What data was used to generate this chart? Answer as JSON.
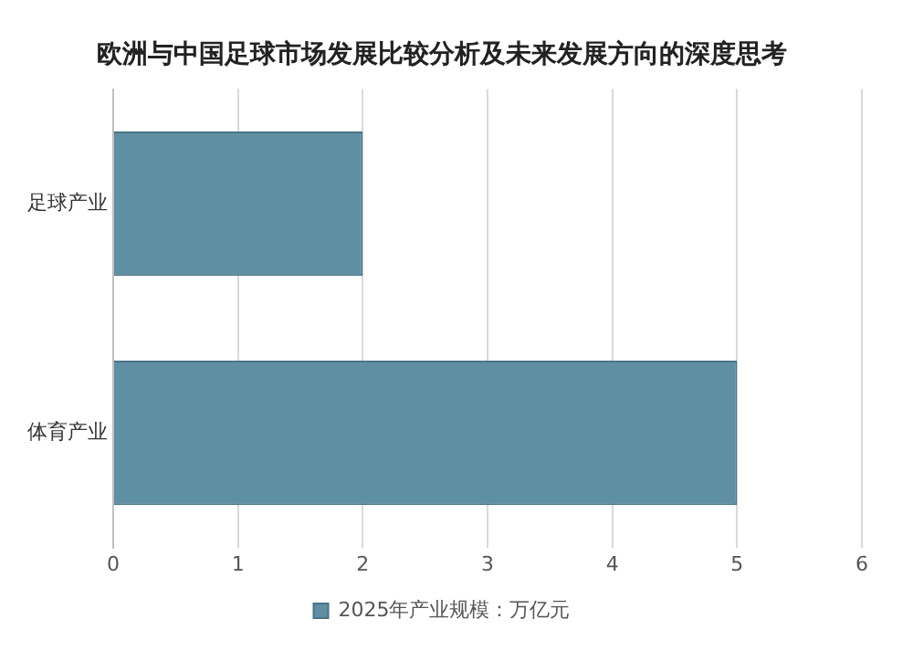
{
  "chart_data": {
    "type": "bar",
    "orientation": "horizontal",
    "title": "欧洲与中国足球市场发展比较分析及未来发展方向的深度思考",
    "categories": [
      "足球产业",
      "体育产业"
    ],
    "series": [
      {
        "name": "2025年产业规模：万亿元",
        "color": "#5f8fa3",
        "values": [
          2,
          5
        ]
      }
    ],
    "xlim": [
      0,
      6
    ],
    "xticks": [
      0,
      1,
      2,
      3,
      4,
      5,
      6
    ],
    "grid": "x",
    "legend": "bottom"
  }
}
